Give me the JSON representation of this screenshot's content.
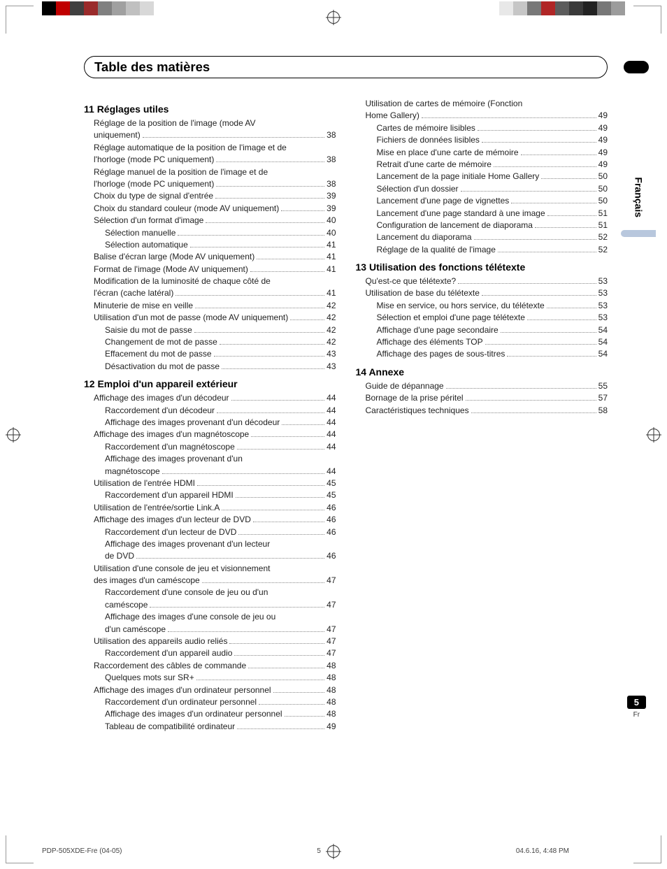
{
  "title": "Table des matières",
  "side_lang": "Français",
  "page_number": "5",
  "page_lang_short": "Fr",
  "footer_left": "PDP-505XDE-Fre (04-05)",
  "footer_center": "5",
  "footer_right": "04.6.16, 4:48 PM",
  "color_bar": [
    "#000000",
    "#c00000",
    "#404040",
    "#9a2b2b",
    "#808080",
    "#a0a0a0",
    "#c0c0c0",
    "#d8d8d8",
    "#ffffff"
  ],
  "color_bar_r": [
    "#e8e8e8",
    "#c6c6c6",
    "#787878",
    "#b02626",
    "#5c5c5c",
    "#3a3a3a",
    "#222222",
    "#777777",
    "#9c9c9c"
  ],
  "sections": [
    {
      "col": 0,
      "head": "11 Réglages utiles",
      "items": [
        {
          "l": 1,
          "wrap": "Réglage de la position de l'image (mode AV",
          "t": "uniquement)",
          "p": "38"
        },
        {
          "l": 1,
          "wrap": "Réglage automatique de la position de l'image et de",
          "t": "l'horloge (mode PC uniquement)",
          "p": "38"
        },
        {
          "l": 1,
          "wrap": "Réglage manuel de la position de l'image et de",
          "t": "l'horloge (mode PC uniquement)",
          "p": "38"
        },
        {
          "l": 1,
          "t": "Choix du type de signal d'entrée",
          "p": "39"
        },
        {
          "l": 1,
          "t": "Choix du standard couleur (mode AV uniquement)",
          "p": "39"
        },
        {
          "l": 1,
          "t": "Sélection d'un format d'image",
          "p": "40"
        },
        {
          "l": 2,
          "t": "Sélection manuelle",
          "p": "40"
        },
        {
          "l": 2,
          "t": "Sélection automatique",
          "p": "41"
        },
        {
          "l": 1,
          "t": "Balise d'écran large (Mode AV uniquement)",
          "p": "41"
        },
        {
          "l": 1,
          "t": "Format de l'image (Mode AV uniquement)",
          "p": "41"
        },
        {
          "l": 1,
          "wrap": "Modification de la luminosité de chaque côté de",
          "t": "l'écran (cache latéral)",
          "p": "41"
        },
        {
          "l": 1,
          "t": "Minuterie de mise en veille",
          "p": "42"
        },
        {
          "l": 1,
          "t": "Utilisation d'un mot de passe (mode AV uniquement)",
          "p": "42"
        },
        {
          "l": 2,
          "t": "Saisie du mot de passe",
          "p": "42"
        },
        {
          "l": 2,
          "t": "Changement de mot de passe",
          "p": "42"
        },
        {
          "l": 2,
          "t": "Effacement du mot de passe",
          "p": "43"
        },
        {
          "l": 2,
          "t": "Désactivation du mot de passe",
          "p": "43"
        }
      ]
    },
    {
      "col": 0,
      "head": "12 Emploi d'un appareil extérieur",
      "items": [
        {
          "l": 1,
          "t": "Affichage des images d'un décodeur",
          "p": "44"
        },
        {
          "l": 2,
          "t": "Raccordement d'un décodeur",
          "p": "44"
        },
        {
          "l": 2,
          "t": "Affichage des images provenant d'un décodeur",
          "p": "44"
        },
        {
          "l": 1,
          "t": "Affichage des images d'un magnétoscope",
          "p": "44"
        },
        {
          "l": 2,
          "t": "Raccordement d'un magnétoscope",
          "p": "44"
        },
        {
          "l": 2,
          "wrap": "Affichage des images provenant d'un",
          "t": "magnétoscope",
          "p": "44"
        },
        {
          "l": 1,
          "t": "Utilisation de l'entrée HDMI",
          "p": "45"
        },
        {
          "l": 2,
          "t": "Raccordement d'un appareil HDMI",
          "p": "45"
        },
        {
          "l": 1,
          "t": "Utilisation de l'entrée/sortie Link.A",
          "p": "46"
        },
        {
          "l": 1,
          "t": "Affichage des images d'un lecteur de DVD",
          "p": "46"
        },
        {
          "l": 2,
          "t": "Raccordement d'un lecteur de DVD",
          "p": "46"
        },
        {
          "l": 2,
          "wrap": "Affichage des images provenant d'un lecteur",
          "t": "de DVD",
          "p": "46"
        },
        {
          "l": 1,
          "wrap": "Utilisation d'une console de jeu et visionnement",
          "t": "des images d'un caméscope",
          "p": "47"
        },
        {
          "l": 2,
          "wrap": "Raccordement d'une console de jeu ou d'un",
          "t": "caméscope",
          "p": "47"
        },
        {
          "l": 2,
          "wrap": "Affichage des images d'une console de jeu ou",
          "t": "d'un caméscope",
          "p": "47"
        },
        {
          "l": 1,
          "t": "Utilisation des appareils audio reliés",
          "p": "47"
        },
        {
          "l": 2,
          "t": "Raccordement d'un appareil audio",
          "p": "47"
        },
        {
          "l": 1,
          "t": "Raccordement des câbles de commande",
          "p": "48"
        },
        {
          "l": 2,
          "t": "Quelques mots sur SR+",
          "p": "48"
        },
        {
          "l": 1,
          "t": "Affichage des images d'un ordinateur personnel",
          "p": "48"
        },
        {
          "l": 2,
          "t": "Raccordement d'un ordinateur personnel",
          "p": "48"
        },
        {
          "l": 2,
          "t": "Affichage des images d'un ordinateur personnel",
          "p": "48"
        },
        {
          "l": 2,
          "t": "Tableau de compatibilité ordinateur",
          "p": "49"
        }
      ]
    },
    {
      "col": 1,
      "head": "",
      "items": [
        {
          "l": 1,
          "wrap": "Utilisation de cartes de mémoire (Fonction",
          "t": "Home Gallery)",
          "p": "49"
        },
        {
          "l": 2,
          "t": "Cartes de mémoire lisibles",
          "p": "49"
        },
        {
          "l": 2,
          "t": "Fichiers de données lisibles",
          "p": "49"
        },
        {
          "l": 2,
          "t": "Mise en place d'une carte de mémoire",
          "p": "49"
        },
        {
          "l": 2,
          "t": "Retrait d'une carte de mémoire",
          "p": "49"
        },
        {
          "l": 2,
          "t": "Lancement de la page initiale Home Gallery",
          "p": "50"
        },
        {
          "l": 2,
          "t": "Sélection d'un dossier",
          "p": "50"
        },
        {
          "l": 2,
          "t": "Lancement d'une page de vignettes",
          "p": "50"
        },
        {
          "l": 2,
          "t": "Lancement d'une page standard à une image",
          "p": "51"
        },
        {
          "l": 2,
          "t": "Configuration de lancement de diaporama",
          "p": "51"
        },
        {
          "l": 2,
          "t": "Lancement du diaporama",
          "p": "52"
        },
        {
          "l": 2,
          "t": "Réglage de la qualité de l'image",
          "p": "52"
        }
      ]
    },
    {
      "col": 1,
      "head": "13 Utilisation des fonctions télétexte",
      "items": [
        {
          "l": 1,
          "t": "Qu'est-ce que télétexte?",
          "p": "53"
        },
        {
          "l": 1,
          "t": "Utilisation de base du télétexte",
          "p": "53"
        },
        {
          "l": 2,
          "t": "Mise en service, ou hors service, du télétexte",
          "p": "53"
        },
        {
          "l": 2,
          "t": "Sélection et emploi d'une page télétexte",
          "p": "53"
        },
        {
          "l": 2,
          "t": "Affichage d'une page secondaire",
          "p": "54"
        },
        {
          "l": 2,
          "t": "Affichage des éléments TOP",
          "p": "54"
        },
        {
          "l": 2,
          "t": "Affichage des pages de sous-titres",
          "p": "54"
        }
      ]
    },
    {
      "col": 1,
      "head": "14 Annexe",
      "items": [
        {
          "l": 1,
          "t": "Guide de dépannage",
          "p": "55"
        },
        {
          "l": 1,
          "t": "Bornage de la prise péritel",
          "p": "57"
        },
        {
          "l": 1,
          "t": "Caractéristiques techniques",
          "p": "58"
        }
      ]
    }
  ]
}
